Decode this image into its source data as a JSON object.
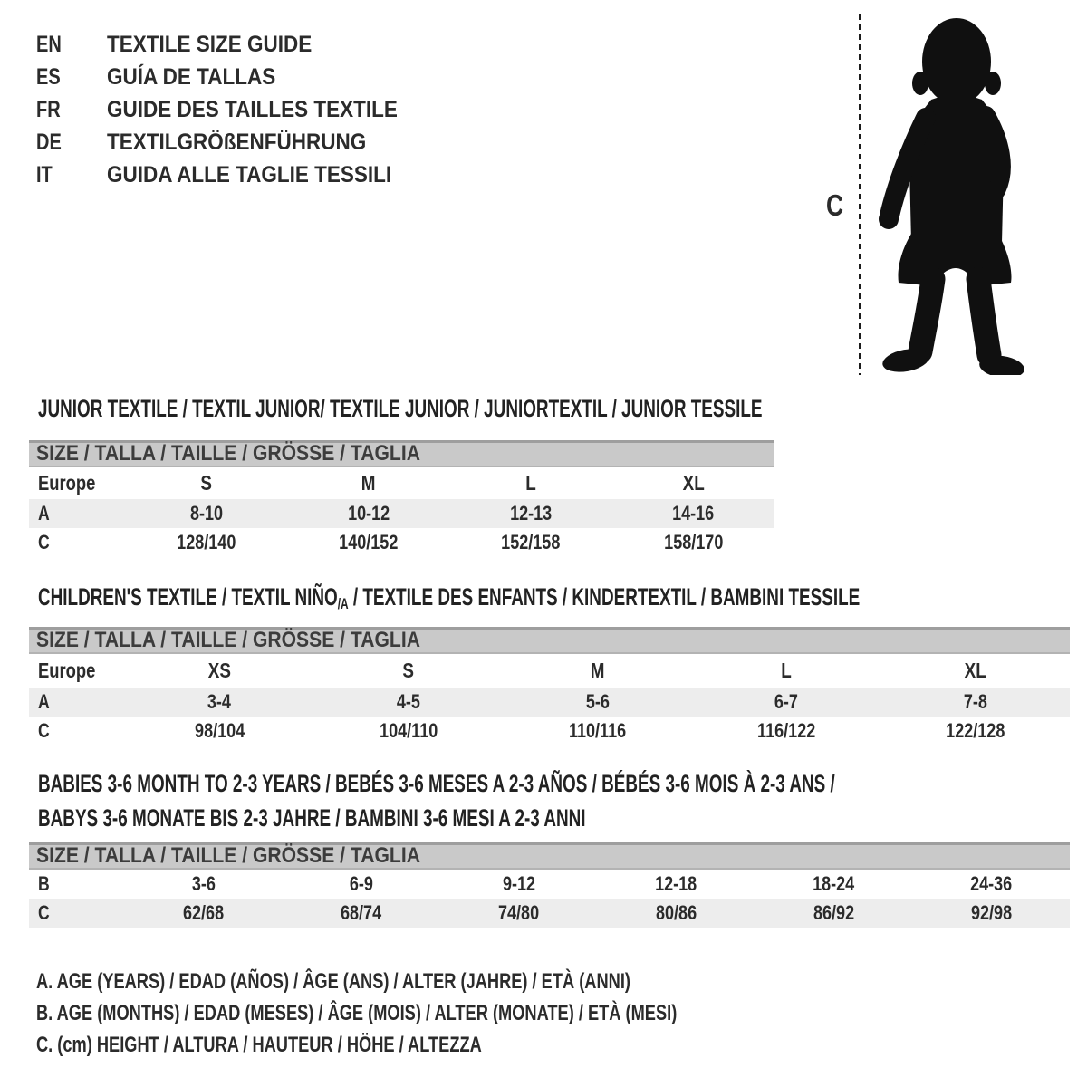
{
  "language_titles": [
    {
      "code": "EN",
      "title": "TEXTILE SIZE GUIDE"
    },
    {
      "code": "ES",
      "title": "GUÍA DE TALLAS"
    },
    {
      "code": "FR",
      "title": "GUIDE DES TAILLES TEXTILE"
    },
    {
      "code": "DE",
      "title": "TEXTILGRÖßENFÜHRUNG"
    },
    {
      "code": "IT",
      "title": "GUIDA ALLE TAGLIE TESSILI"
    }
  ],
  "figure": {
    "icon": "toddler-silhouette-icon",
    "measure_label": "C"
  },
  "sections": [
    {
      "id": "junior",
      "heading_lines": [
        [
          {
            "text": "JUNIOR TEXTILE / TEXTIL JUNIOR/ TEXTILE JUNIOR / JUNIORTEXTIL / JUNIOR TESSILE"
          }
        ]
      ],
      "size_header": "SIZE / TALLA / TAILLE / GRÖSSE / TAGLIA",
      "columns_header": {
        "label": "Europe",
        "values": [
          "S",
          "M",
          "L",
          "XL"
        ]
      },
      "rows": [
        {
          "label": "A",
          "values": [
            "8-10",
            "10-12",
            "12-13",
            "14-16"
          ],
          "shaded": true
        },
        {
          "label": "C",
          "values": [
            "128/140",
            "140/152",
            "152/158",
            "158/170"
          ],
          "shaded": false
        }
      ]
    },
    {
      "id": "children",
      "heading_lines": [
        [
          {
            "text": "CHILDREN'S TEXTILE / TEXTIL NIÑO"
          },
          {
            "text": "/A",
            "sub": true
          },
          {
            "text": " / TEXTILE DES ENFANTS / KINDERTEXTIL / BAMBINI TESSILE"
          }
        ]
      ],
      "size_header": "SIZE / TALLA / TAILLE / GRÖSSE / TAGLIA",
      "columns_header": {
        "label": "Europe",
        "values": [
          "XS",
          "S",
          "M",
          "L",
          "XL"
        ]
      },
      "rows": [
        {
          "label": "A",
          "values": [
            "3-4",
            "4-5",
            "5-6",
            "6-7",
            "7-8"
          ],
          "shaded": true
        },
        {
          "label": "C",
          "values": [
            "98/104",
            "104/110",
            "110/116",
            "116/122",
            "122/128"
          ],
          "shaded": false
        }
      ]
    },
    {
      "id": "babies",
      "heading_lines": [
        [
          {
            "text": "BABIES 3-6 MONTH TO 2-3 YEARS / BEBÉS 3-6 MESES A 2-3 AÑOS / BÉBÉS 3-6 MOIS À 2-3 ANS /"
          }
        ],
        [
          {
            "text": "BABYS 3-6 MONATE BIS 2-3 JAHRE / BAMBINI 3-6 MESI A 2-3 ANNI"
          }
        ]
      ],
      "size_header": "SIZE / TALLA / TAILLE / GRÖSSE / TAGLIA",
      "columns_header": null,
      "rows": [
        {
          "label": "B",
          "values": [
            "3-6",
            "6-9",
            "9-12",
            "12-18",
            "18-24",
            "24-36"
          ],
          "shaded": false
        },
        {
          "label": "C",
          "values": [
            "62/68",
            "68/74",
            "74/80",
            "80/86",
            "86/92",
            "92/98"
          ],
          "shaded": true
        }
      ]
    }
  ],
  "legend": [
    "A. AGE (YEARS) / EDAD (AÑOS) / ÂGE (ANS) / ALTER (JAHRE) / ETÀ (ANNI)",
    "B. AGE (MONTHS) / EDAD (MESES) / ÂGE (MOIS) / ALTER (MONATE) / ETÀ (MESI)",
    "C. (cm) HEIGHT / ALTURA / HAUTEUR / HÖHE / ALTEZZA"
  ],
  "colors": {
    "bar_background": "#c9c9c9",
    "bar_top_border": "#9e9e9e",
    "row_shaded": "#ededed",
    "text": "#2b2b2b",
    "silhouette": "#101010"
  }
}
